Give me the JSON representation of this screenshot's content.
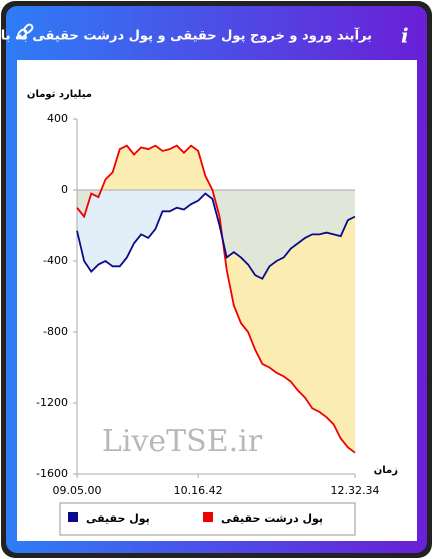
{
  "header": {
    "title": "برآیند ورود و خروج پول حقیقی و پول درشت حقیقی به بازار",
    "info": "i"
  },
  "chart_data": {
    "type": "line",
    "y_label": "میلیارد تومان",
    "x_label": "زمان",
    "watermark": "LiveTSE.ir",
    "x": [
      0,
      1,
      2,
      3,
      4,
      5,
      6,
      7,
      8,
      9,
      10,
      11,
      12,
      13,
      14,
      15,
      16,
      17,
      18,
      19,
      20,
      21,
      22,
      23,
      24,
      25,
      26,
      27,
      28,
      29,
      30,
      31,
      32,
      33,
      34,
      35,
      36,
      37,
      38,
      39
    ],
    "xlim": [
      0,
      39
    ],
    "xticks": [
      {
        "value": 0,
        "label": "09.05.00"
      },
      {
        "value": 17,
        "label": "10.16.42"
      },
      {
        "value": 39,
        "label": "12.32.34"
      }
    ],
    "ylim": [
      -1600,
      400
    ],
    "yticks": [
      400,
      0,
      -400,
      -800,
      -1200,
      -1600
    ],
    "series": [
      {
        "name": "پول حقیقی",
        "color": "#0a0a8c",
        "fill": "#cfe4f4",
        "values": [
          -230,
          -400,
          -460,
          -420,
          -400,
          -430,
          -430,
          -380,
          -300,
          -250,
          -270,
          -220,
          -120,
          -120,
          -100,
          -110,
          -80,
          -60,
          -20,
          -50,
          -200,
          -380,
          -350,
          -380,
          -420,
          -480,
          -500,
          -430,
          -400,
          -380,
          -330,
          -300,
          -270,
          -250,
          -250,
          -240,
          -250,
          -260,
          -170,
          -150
        ]
      },
      {
        "name": "پول درشت حقیقی",
        "color": "#f00000",
        "fill": "#fbeaa8",
        "values": [
          -100,
          -150,
          -20,
          -40,
          60,
          100,
          230,
          250,
          200,
          240,
          230,
          250,
          220,
          230,
          250,
          210,
          250,
          220,
          80,
          0,
          -150,
          -450,
          -650,
          -750,
          -800,
          -900,
          -980,
          -1000,
          -1030,
          -1050,
          -1080,
          -1130,
          -1170,
          -1230,
          -1250,
          -1280,
          -1320,
          -1400,
          -1450,
          -1480
        ]
      }
    ]
  }
}
